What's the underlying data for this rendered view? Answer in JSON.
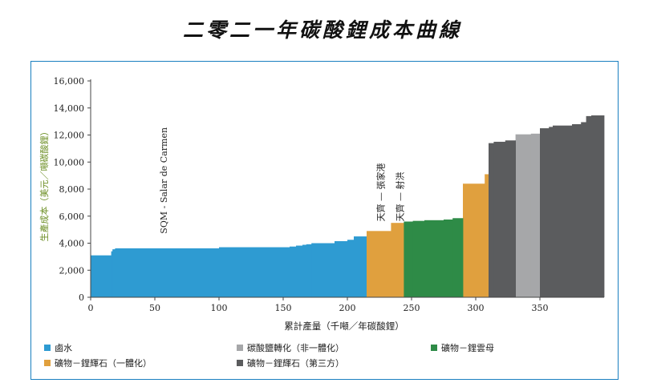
{
  "chart_data": {
    "type": "step-area",
    "title": "二零二一年碳酸鋰成本曲線",
    "xlabel": "累計產量（千噸／年碳酸鋰）",
    "ylabel": "生產成本（美元／噸碳酸鋰）",
    "xlim": [
      0,
      400
    ],
    "ylim": [
      0,
      16000
    ],
    "xticks": [
      0,
      50,
      100,
      150,
      200,
      250,
      300,
      350
    ],
    "yticks": [
      0,
      2000,
      4000,
      6000,
      8000,
      10000,
      12000,
      14000,
      16000
    ],
    "ytick_labels": [
      "0",
      "2,000",
      "4,000",
      "6,000",
      "8,000",
      "10,000",
      "12,000",
      "14,000",
      "16,000"
    ],
    "grid": false,
    "legend_position": "bottom",
    "series": [
      {
        "name": "鹵水",
        "color": "#2E9BD2",
        "steps": [
          [
            0,
            16,
            3100
          ],
          [
            16,
            17,
            3400
          ],
          [
            17,
            19,
            3550
          ],
          [
            19,
            100,
            3620
          ],
          [
            100,
            155,
            3700
          ],
          [
            155,
            160,
            3750
          ],
          [
            160,
            165,
            3820
          ],
          [
            165,
            168,
            3880
          ],
          [
            168,
            172,
            3920
          ],
          [
            172,
            190,
            4000
          ],
          [
            190,
            200,
            4150
          ],
          [
            200,
            205,
            4250
          ],
          [
            205,
            215,
            4500
          ]
        ]
      },
      {
        "name": "礦物－鋰輝石（一體化）",
        "color": "#E0A03E",
        "steps": [
          [
            215,
            234,
            4900
          ],
          [
            234,
            244,
            5500
          ],
          [
            290,
            307,
            8400
          ],
          [
            307,
            310,
            9100
          ]
        ]
      },
      {
        "name": "礦物－鋰雲母",
        "color": "#2E8B47",
        "steps": [
          [
            244,
            251,
            5600
          ],
          [
            251,
            260,
            5650
          ],
          [
            260,
            275,
            5700
          ],
          [
            275,
            282,
            5750
          ],
          [
            282,
            290,
            5850
          ]
        ]
      },
      {
        "name": "碳酸鹽轉化（非一體化）",
        "color": "#A6A7A9",
        "steps": [
          [
            331,
            343,
            12050
          ],
          [
            343,
            350,
            12100
          ]
        ]
      },
      {
        "name": "礦物－鋰輝石（第三方）",
        "color": "#5B5C5E",
        "steps": [
          [
            310,
            314,
            11400
          ],
          [
            314,
            323,
            11500
          ],
          [
            323,
            331,
            11600
          ],
          [
            350,
            357,
            12500
          ],
          [
            357,
            360,
            12600
          ],
          [
            360,
            375,
            12700
          ],
          [
            375,
            382,
            12800
          ],
          [
            382,
            386,
            12950
          ],
          [
            386,
            390,
            13400
          ],
          [
            390,
            400,
            13450
          ]
        ]
      }
    ],
    "annotations": [
      {
        "text": "SQM - Salar de Carmen",
        "x": 57,
        "y": 4700
      },
      {
        "text": "天齊 — 張家港",
        "x": 226,
        "y": 5600
      },
      {
        "text": "天齊 — 射洪",
        "x": 241,
        "y": 5600
      }
    ]
  },
  "legend": [
    {
      "label": "鹵水",
      "color": "#2E9BD2"
    },
    {
      "label": "碳酸鹽轉化（非一體化）",
      "color": "#A6A7A9"
    },
    {
      "label": "礦物－鋰雲母",
      "color": "#2E8B47"
    },
    {
      "label": "礦物－鋰輝石（一體化）",
      "color": "#E0A03E"
    },
    {
      "label": "礦物－鋰輝石（第三方）",
      "color": "#5B5C5E"
    }
  ]
}
